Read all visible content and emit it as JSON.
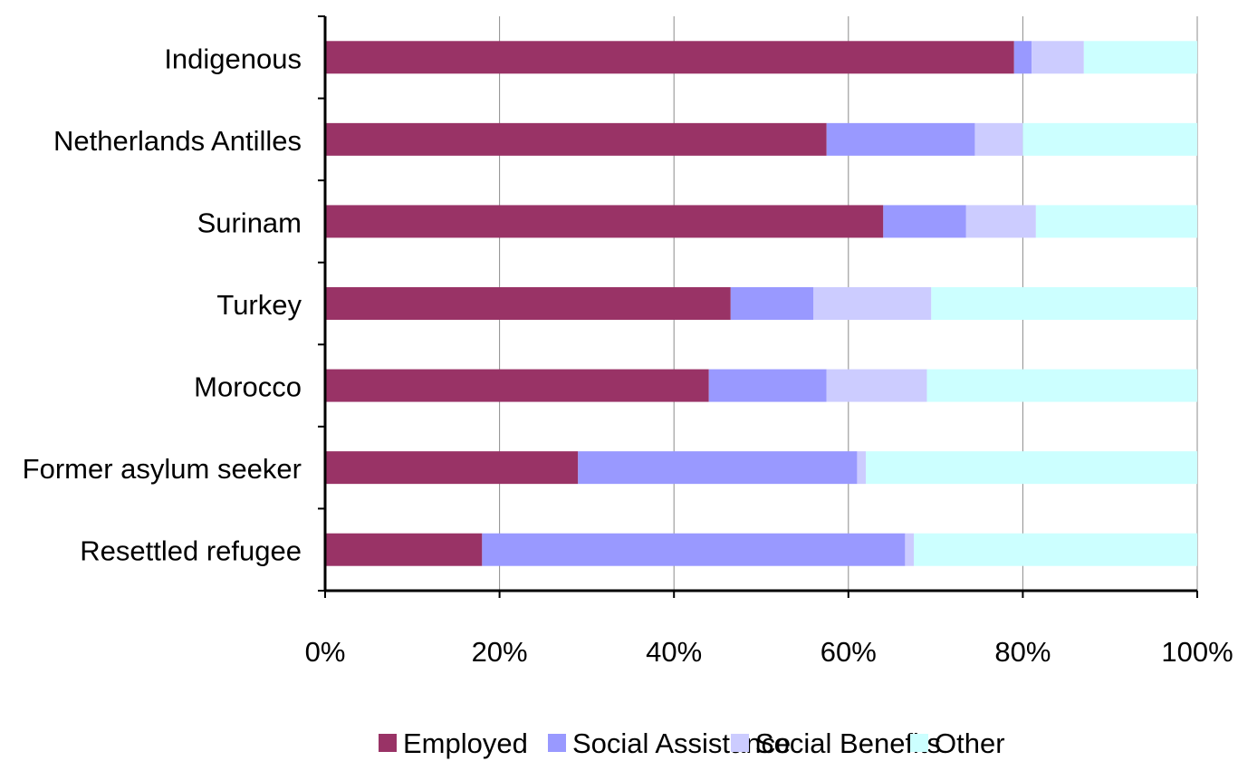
{
  "chart_data": {
    "type": "bar",
    "orientation": "horizontal",
    "stacked": "percent",
    "title": "",
    "xlabel": "",
    "ylabel": "",
    "xlim": [
      0,
      100
    ],
    "x_ticks": [
      "0%",
      "20%",
      "40%",
      "60%",
      "80%",
      "100%"
    ],
    "grid": "vertical",
    "legend_position": "bottom",
    "categories": [
      "Indigenous",
      "Netherlands Antilles",
      "Surinam",
      "Turkey",
      "Morocco",
      "Former asylum seeker",
      "Resettled refugee"
    ],
    "series": [
      {
        "name": "Employed",
        "color": "#993366",
        "values": [
          79,
          57.5,
          64,
          46.5,
          44,
          29,
          18
        ]
      },
      {
        "name": "Social Assistance",
        "color": "#9999ff",
        "values": [
          2,
          17,
          9.5,
          9.5,
          13.5,
          32,
          48.5
        ]
      },
      {
        "name": "Social Benefits",
        "color": "#ccccff",
        "values": [
          6,
          5.5,
          8,
          13.5,
          11.5,
          1,
          1
        ]
      },
      {
        "name": "Other",
        "color": "#ccffff",
        "values": [
          13,
          20,
          18.5,
          30.5,
          31,
          38,
          32.5
        ]
      }
    ]
  }
}
